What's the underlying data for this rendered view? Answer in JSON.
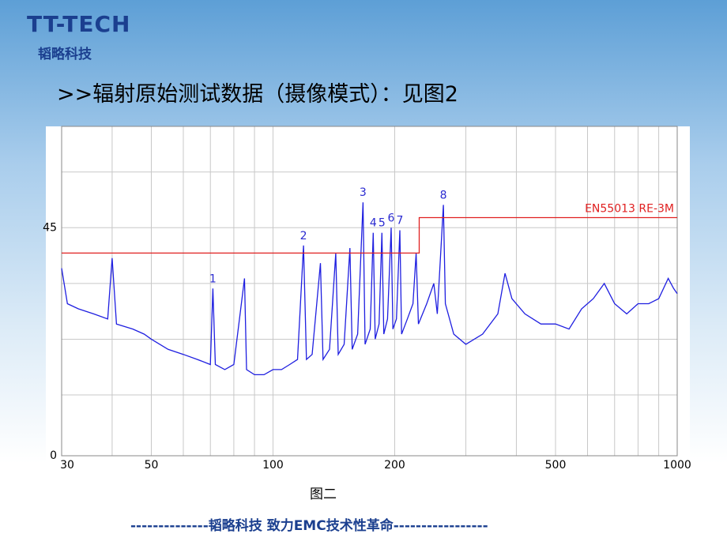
{
  "slide": {
    "logo": "TT-TECH",
    "logo_sub": "韬略科技",
    "heading": ">>辐射原始测试数据（摄像模式）：见图2",
    "caption": "图二",
    "footer": "--------------韬略科技  致力EMC技术性革命-----------------"
  },
  "chart_data": {
    "type": "line",
    "log_x": true,
    "xlim": [
      30,
      1000
    ],
    "xticks": [
      30,
      50,
      100,
      200,
      500,
      1000
    ],
    "ylim": [
      0,
      65
    ],
    "yticks": [
      0,
      45
    ],
    "grid": true,
    "x_minor_grid": [
      40,
      60,
      70,
      80,
      90,
      300,
      400,
      600,
      700,
      800,
      900
    ],
    "y_minor_grid": [
      12,
      23,
      34,
      56
    ],
    "series": [
      {
        "color": "#1f1fe0",
        "x": [
          30,
          31,
          33,
          36,
          39,
          40,
          41,
          45,
          48,
          50,
          55,
          60,
          65,
          70,
          71,
          72,
          76,
          80,
          85,
          86,
          90,
          95,
          100,
          105,
          110,
          115,
          119,
          121,
          125,
          131,
          133,
          138,
          143,
          145,
          150,
          155,
          157,
          162,
          167,
          169,
          174,
          177,
          179,
          183,
          186,
          188,
          192,
          196,
          198,
          202,
          206,
          208,
          215,
          222,
          226,
          229,
          240,
          250,
          255,
          264,
          267,
          280,
          300,
          330,
          360,
          375,
          390,
          420,
          460,
          500,
          540,
          580,
          620,
          660,
          700,
          750,
          800,
          850,
          900,
          950,
          980,
          1000
        ],
        "values": [
          37,
          30,
          29,
          28,
          27,
          39,
          26,
          25,
          24,
          23,
          21,
          20,
          19,
          18,
          33,
          18,
          17,
          18,
          35,
          17,
          16,
          16,
          17,
          17,
          18,
          19,
          41.5,
          19,
          20,
          38,
          19,
          21,
          40,
          20,
          22,
          41,
          21,
          24,
          50,
          22,
          25,
          44,
          23,
          26,
          44,
          24,
          27,
          45,
          25,
          27,
          44.5,
          24,
          27,
          30,
          40,
          26,
          30,
          34,
          28,
          49.5,
          30,
          24,
          22,
          24,
          28,
          36,
          31,
          28,
          26,
          26,
          25,
          29,
          31,
          34,
          30,
          28,
          30,
          30,
          31,
          35,
          33,
          32
        ]
      },
      {
        "name": "EN55013 RE-3M",
        "color": "#e02020",
        "x": [
          30,
          230,
          230,
          1000
        ],
        "values": [
          40,
          40,
          47,
          47
        ]
      }
    ],
    "markers": [
      {
        "label": "1",
        "x": 71,
        "value": 33
      },
      {
        "label": "2",
        "x": 119,
        "value": 41.5
      },
      {
        "label": "3",
        "x": 167,
        "value": 50
      },
      {
        "label": "4",
        "x": 177,
        "value": 44
      },
      {
        "label": "5",
        "x": 186,
        "value": 44
      },
      {
        "label": "6",
        "x": 196,
        "value": 45
      },
      {
        "label": "7",
        "x": 206,
        "value": 44.5
      },
      {
        "label": "8",
        "x": 264,
        "value": 49.5
      }
    ]
  }
}
